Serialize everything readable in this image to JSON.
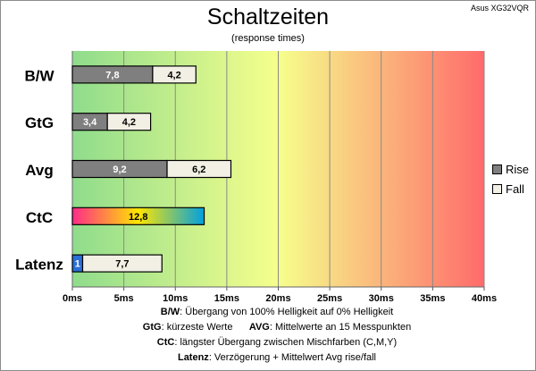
{
  "header": {
    "title": "Schaltzeiten",
    "subtitle": "(response times)",
    "model": "Asus XG32VQR"
  },
  "legend": {
    "rise_label": "Rise",
    "fall_label": "Fall",
    "rise_color": "#7f7f7f",
    "fall_color": "#f2f0e4"
  },
  "notes": {
    "bw_key": "B/W",
    "bw_text": ":  Übergang von 100% Helligkeit auf 0% Helligkeit",
    "gtg_key": "GtG",
    "gtg_text": ": kürzeste  Werte",
    "avg_key": "AVG",
    "avg_text": ": Mittelwerte  an 15 Messpunkten",
    "ctc_key": "CtC",
    "ctc_text": ": längster Übergang  zwischen Mischfarben  (C,M,Y)",
    "lat_key": "Latenz",
    "lat_text": ": Verzögerung  + Mittelwert Avg rise/fall"
  },
  "chart_data": {
    "type": "bar",
    "orientation": "horizontal",
    "stacked": true,
    "categories": [
      "B/W",
      "GtG",
      "Avg",
      "CtC",
      "Latenz"
    ],
    "series": [
      {
        "name": "Rise",
        "values": [
          7.8,
          3.4,
          9.2,
          12.8,
          1
        ]
      },
      {
        "name": "Fall",
        "values": [
          4.2,
          4.2,
          6.2,
          0,
          7.7
        ]
      }
    ],
    "xlim": [
      0,
      40
    ],
    "x_ticks": [
      "0ms",
      "5ms",
      "10ms",
      "15ms",
      "20ms",
      "25ms",
      "30ms",
      "35ms",
      "40ms"
    ],
    "grid": true,
    "legend_position": "right",
    "background_gradient": [
      "#8fdc8c",
      "#f6ff8c",
      "#ff6b6b"
    ],
    "ctc_gradient": [
      "#ff2a8a",
      "#ffe600",
      "#00a0e0"
    ],
    "latency_delay_color": "#2a6fd6"
  }
}
